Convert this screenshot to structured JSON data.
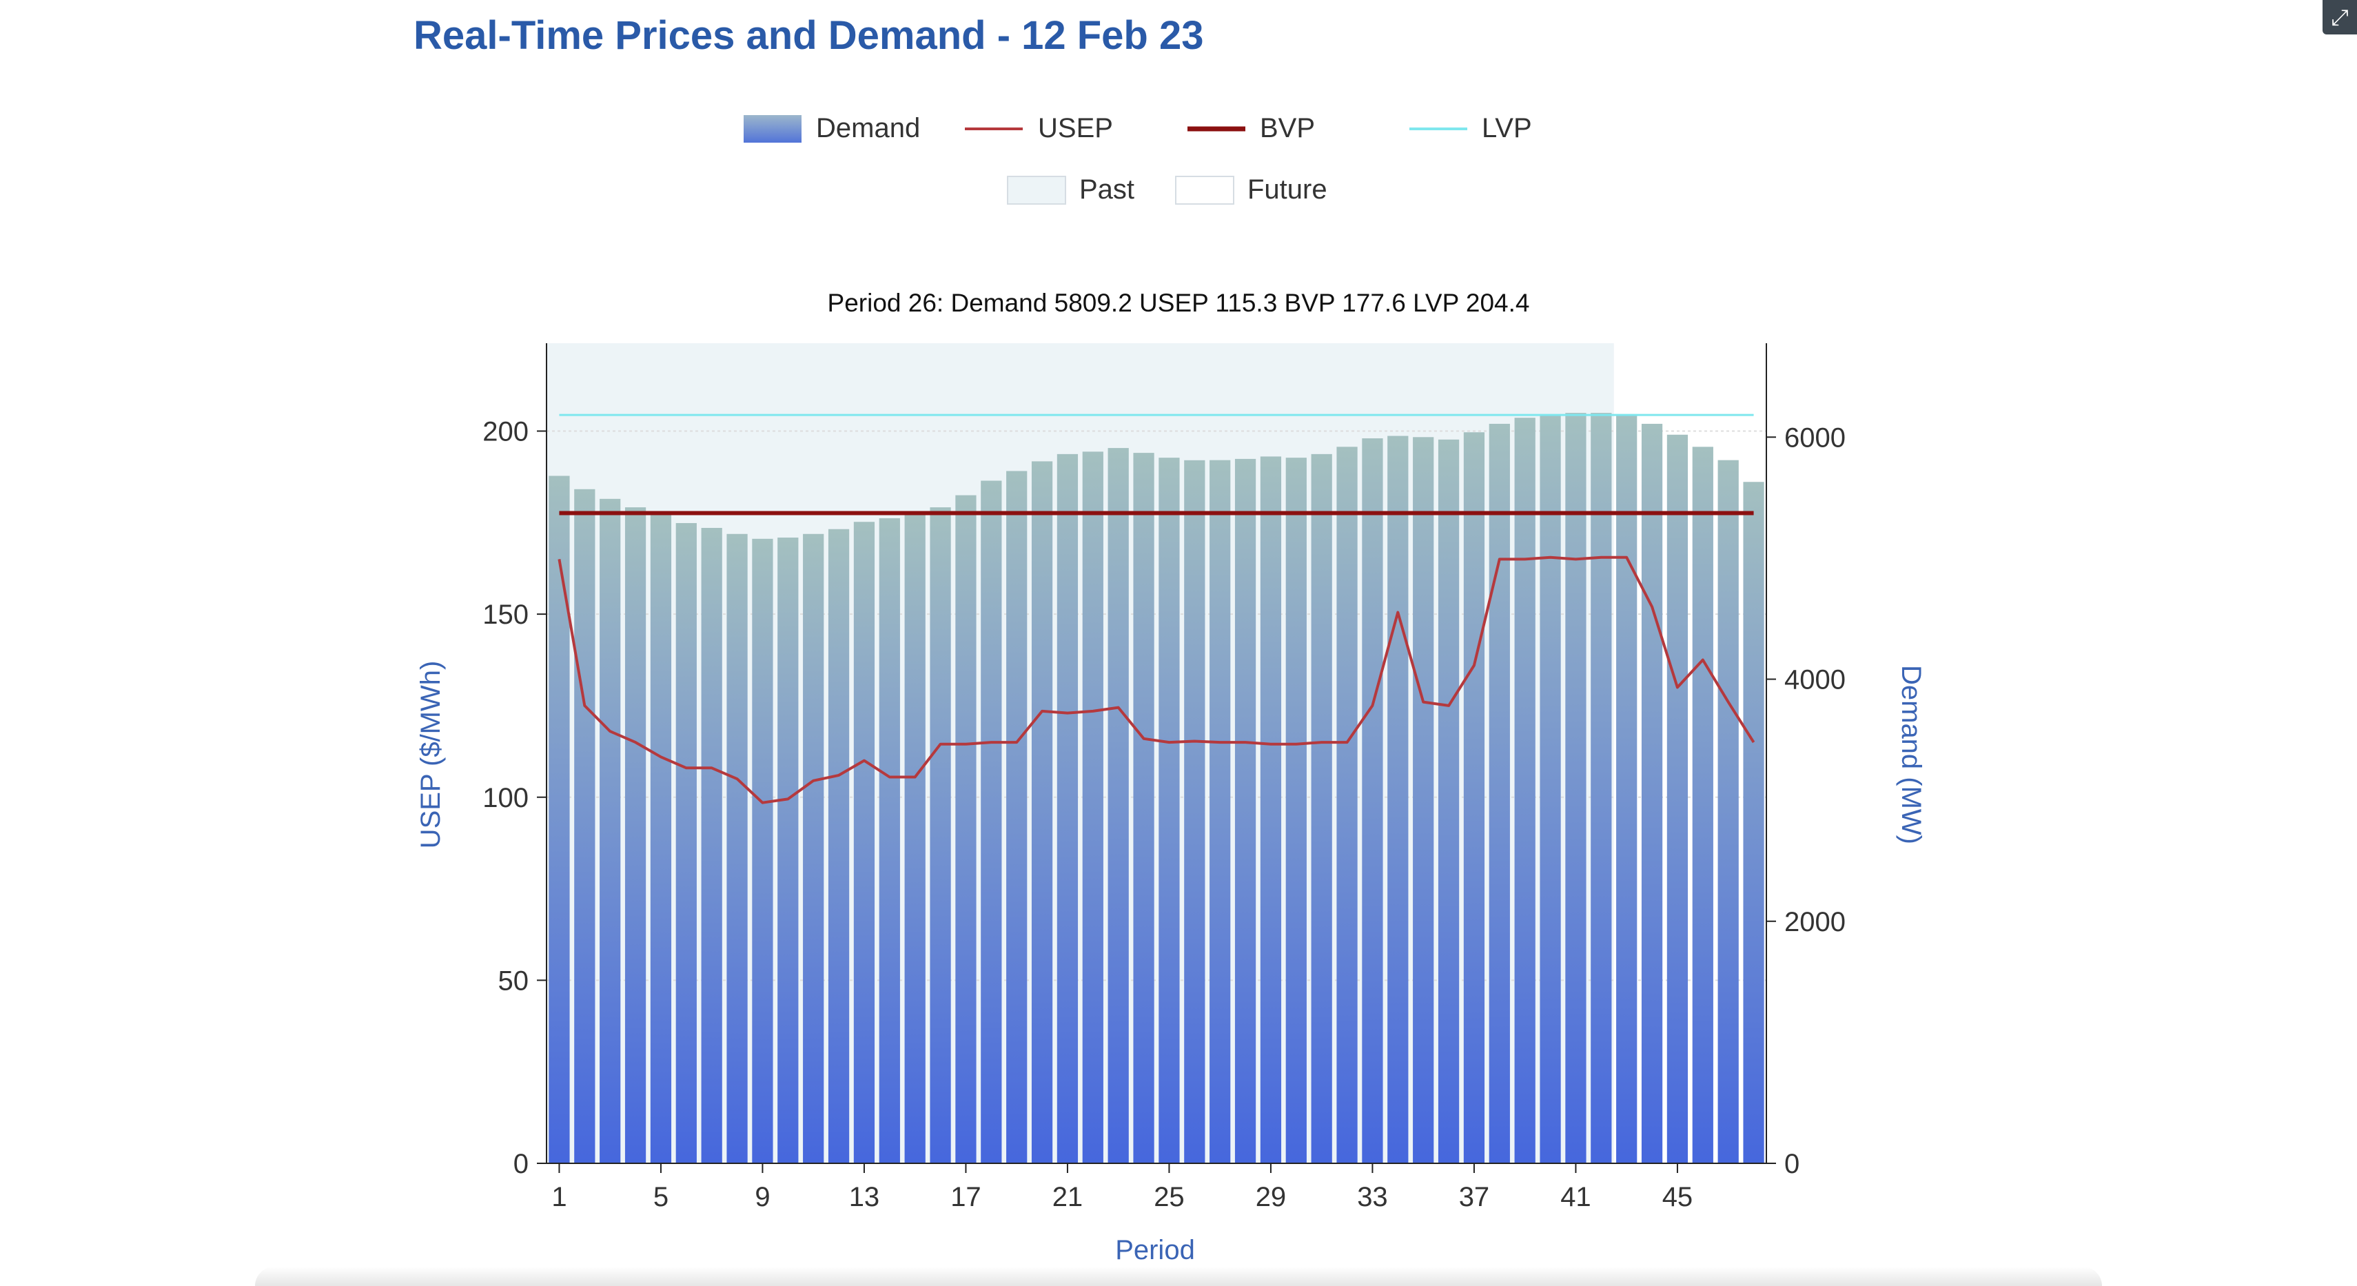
{
  "title": "Real-Time Prices and Demand - 12 Feb 23",
  "expand_icon": "expand-icon",
  "tooltip": "Period 26: Demand 5809.2 USEP 115.3 BVP 177.6 LVP 204.4",
  "colors": {
    "title": "#2a5aa8",
    "usep": "#b5393d",
    "bvp": "#8b1010",
    "lvp": "#7fe7ee",
    "past_bg": "#edf4f7",
    "demand_top": "#a4c0c0",
    "demand_bottom": "#4667dd",
    "axis_label": "#3a64b5"
  },
  "chart_data": {
    "type": "bar",
    "legend": [
      {
        "name": "Demand",
        "kind": "bar"
      },
      {
        "name": "USEP",
        "kind": "line"
      },
      {
        "name": "BVP",
        "kind": "line"
      },
      {
        "name": "LVP",
        "kind": "line"
      },
      {
        "name": "Past",
        "kind": "area"
      },
      {
        "name": "Future",
        "kind": "area"
      }
    ],
    "x": [
      1,
      2,
      3,
      4,
      5,
      6,
      7,
      8,
      9,
      10,
      11,
      12,
      13,
      14,
      15,
      16,
      17,
      18,
      19,
      20,
      21,
      22,
      23,
      24,
      25,
      26,
      27,
      28,
      29,
      30,
      31,
      32,
      33,
      34,
      35,
      36,
      37,
      38,
      39,
      40,
      41,
      42,
      43,
      44,
      45,
      46,
      47,
      48
    ],
    "xticks": [
      1,
      5,
      9,
      13,
      17,
      21,
      25,
      29,
      33,
      37,
      41,
      45
    ],
    "xlabel": "Period",
    "ylabel_left": "USEP ($/MWh)",
    "ylabel_right": "Demand (MW)",
    "ylim_left": [
      0,
      224
    ],
    "ylim_right": [
      0,
      6776
    ],
    "yticks_left": [
      0,
      50,
      100,
      150,
      200
    ],
    "yticks_right": [
      0,
      2000,
      4000,
      6000
    ],
    "past_until_period": 42,
    "series": [
      {
        "name": "Demand",
        "axis": "right",
        "values": [
          5680,
          5570,
          5490,
          5420,
          5360,
          5290,
          5250,
          5200,
          5160,
          5170,
          5200,
          5240,
          5300,
          5330,
          5370,
          5420,
          5520,
          5640,
          5720,
          5800,
          5860,
          5880,
          5910,
          5870,
          5830,
          5809.2,
          5810,
          5820,
          5840,
          5830,
          5860,
          5920,
          5990,
          6010,
          6000,
          5980,
          6040,
          6110,
          6160,
          6190,
          6200,
          6200,
          6190,
          6110,
          6020,
          5920,
          5810,
          5630
        ]
      },
      {
        "name": "USEP",
        "axis": "left",
        "values": [
          165,
          125,
          118,
          115,
          111,
          108,
          108,
          105,
          98.5,
          99.5,
          104.5,
          106,
          110,
          105.5,
          105.5,
          114.5,
          114.5,
          115,
          115,
          123.5,
          123,
          123.5,
          124.5,
          116,
          115,
          115.3,
          115,
          115,
          114.5,
          114.5,
          115,
          115,
          125,
          150.5,
          126,
          125,
          136,
          165,
          165,
          165.5,
          165,
          165.5,
          165.5,
          152,
          130,
          137.5,
          126,
          115
        ]
      },
      {
        "name": "BVP",
        "axis": "left",
        "constant": 177.6
      },
      {
        "name": "LVP",
        "axis": "left",
        "constant": 204.4
      }
    ]
  }
}
